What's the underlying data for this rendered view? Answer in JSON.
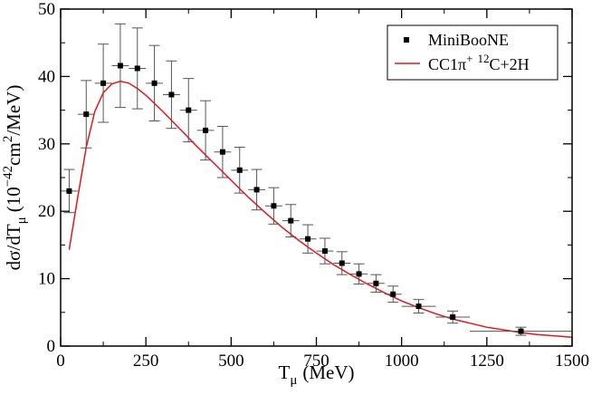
{
  "chart_data": {
    "type": "scatter",
    "title": "",
    "xlabel": {
      "main": "T",
      "sub": "μ",
      "unit": "(MeV)"
    },
    "ylabel": {
      "prefix": "dσ/dT",
      "sub": "μ",
      "open": "(10",
      "exp": "−42",
      "mid": "cm",
      "exp2": "2",
      "close": "/MeV)"
    },
    "xlim": [
      0,
      1500
    ],
    "ylim": [
      0,
      50
    ],
    "x_ticks": [
      0,
      250,
      500,
      750,
      1000,
      1250,
      1500
    ],
    "y_ticks": [
      0,
      10,
      20,
      30,
      40,
      50
    ],
    "legend_position": "top-right",
    "series": [
      {
        "name": "MiniBooNE",
        "kind": "points-with-errorbars",
        "color": "#000000",
        "points": [
          {
            "x": 25,
            "xlo": 0,
            "xhi": 50,
            "y": 23.0,
            "err": 3.2
          },
          {
            "x": 75,
            "xlo": 50,
            "xhi": 100,
            "y": 34.4,
            "err": 5.0
          },
          {
            "x": 125,
            "xlo": 100,
            "xhi": 150,
            "y": 39.0,
            "err": 5.8
          },
          {
            "x": 175,
            "xlo": 150,
            "xhi": 200,
            "y": 41.6,
            "err": 6.2
          },
          {
            "x": 225,
            "xlo": 200,
            "xhi": 250,
            "y": 41.2,
            "err": 6.0
          },
          {
            "x": 275,
            "xlo": 250,
            "xhi": 300,
            "y": 39.0,
            "err": 5.6
          },
          {
            "x": 325,
            "xlo": 300,
            "xhi": 350,
            "y": 37.3,
            "err": 5.0
          },
          {
            "x": 375,
            "xlo": 350,
            "xhi": 400,
            "y": 35.0,
            "err": 4.7
          },
          {
            "x": 425,
            "xlo": 400,
            "xhi": 450,
            "y": 32.0,
            "err": 4.4
          },
          {
            "x": 475,
            "xlo": 450,
            "xhi": 500,
            "y": 28.8,
            "err": 3.8
          },
          {
            "x": 525,
            "xlo": 500,
            "xhi": 550,
            "y": 26.1,
            "err": 3.4
          },
          {
            "x": 575,
            "xlo": 550,
            "xhi": 600,
            "y": 23.2,
            "err": 3.0
          },
          {
            "x": 625,
            "xlo": 600,
            "xhi": 650,
            "y": 20.8,
            "err": 2.7
          },
          {
            "x": 675,
            "xlo": 650,
            "xhi": 700,
            "y": 18.6,
            "err": 2.4
          },
          {
            "x": 725,
            "xlo": 700,
            "xhi": 750,
            "y": 15.9,
            "err": 2.1
          },
          {
            "x": 775,
            "xlo": 750,
            "xhi": 800,
            "y": 14.1,
            "err": 1.9
          },
          {
            "x": 825,
            "xlo": 800,
            "xhi": 850,
            "y": 12.3,
            "err": 1.7
          },
          {
            "x": 875,
            "xlo": 850,
            "xhi": 900,
            "y": 10.7,
            "err": 1.5
          },
          {
            "x": 925,
            "xlo": 900,
            "xhi": 950,
            "y": 9.3,
            "err": 1.3
          },
          {
            "x": 975,
            "xlo": 950,
            "xhi": 1000,
            "y": 7.7,
            "err": 1.2
          },
          {
            "x": 1050,
            "xlo": 1000,
            "xhi": 1100,
            "y": 5.9,
            "err": 1.0
          },
          {
            "x": 1150,
            "xlo": 1100,
            "xhi": 1200,
            "y": 4.3,
            "err": 0.9
          },
          {
            "x": 1350,
            "xlo": 1200,
            "xhi": 1500,
            "y": 2.2,
            "err": 0.6
          }
        ]
      },
      {
        "name": "CC1π+ 12C+2H",
        "legend": {
          "a": "CC1π",
          "sup1": "+",
          "sup2": "12",
          "b": "C+2H"
        },
        "kind": "line",
        "color": "#e8141b",
        "x": [
          25,
          50,
          75,
          100,
          125,
          150,
          175,
          200,
          225,
          250,
          300,
          350,
          400,
          450,
          500,
          550,
          600,
          650,
          700,
          750,
          800,
          850,
          900,
          950,
          1000,
          1050,
          1100,
          1150,
          1200,
          1250,
          1300,
          1350,
          1400,
          1450,
          1500
        ],
        "y": [
          14.3,
          22.0,
          29.5,
          34.8,
          37.6,
          38.9,
          39.3,
          39.0,
          38.2,
          37.2,
          34.8,
          32.2,
          29.6,
          27.1,
          24.6,
          22.1,
          19.8,
          17.6,
          15.6,
          13.8,
          12.1,
          10.6,
          9.2,
          7.9,
          6.7,
          5.7,
          4.8,
          4.0,
          3.4,
          2.8,
          2.4,
          2.0,
          1.7,
          1.5,
          1.3
        ]
      }
    ]
  }
}
